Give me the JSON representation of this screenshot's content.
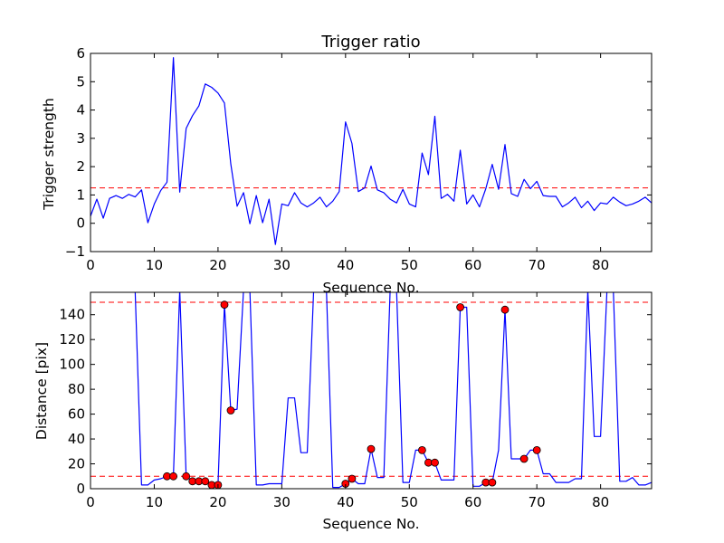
{
  "chart_data": [
    {
      "type": "line",
      "title": "Trigger ratio",
      "xlabel": "Sequence No.",
      "ylabel": "Trigger strength",
      "xlim": [
        0,
        88
      ],
      "ylim": [
        -1,
        6
      ],
      "xticks": [
        0,
        10,
        20,
        30,
        40,
        50,
        60,
        70,
        80
      ],
      "yticks": [
        -1,
        0,
        1,
        2,
        3,
        4,
        5,
        6
      ],
      "grid": false,
      "line_color": "#0000ff",
      "threshold": {
        "value": 1.25,
        "style": "dashed",
        "color": "#ff0000"
      },
      "x_start": 0,
      "values": [
        0.25,
        0.85,
        0.18,
        0.88,
        0.98,
        0.88,
        1.02,
        0.93,
        1.18,
        0.02,
        0.68,
        1.15,
        1.45,
        5.85,
        1.1,
        3.35,
        3.8,
        4.15,
        4.92,
        4.8,
        4.6,
        4.25,
        2.1,
        0.6,
        1.08,
        -0.02,
        0.98,
        0.02,
        0.85,
        -0.75,
        0.68,
        0.62,
        1.08,
        0.72,
        0.58,
        0.72,
        0.92,
        0.58,
        0.78,
        1.12,
        3.58,
        2.82,
        1.12,
        1.25,
        2.02,
        1.18,
        1.08,
        0.85,
        0.72,
        1.2,
        0.68,
        0.58,
        2.48,
        1.72,
        3.78,
        0.88,
        1.02,
        0.78,
        2.58,
        0.68,
        1.0,
        0.58,
        1.22,
        2.08,
        1.2,
        2.78,
        1.05,
        0.95,
        1.55,
        1.22,
        1.48,
        0.98,
        0.95,
        0.95,
        0.58,
        0.72,
        0.92,
        0.55,
        0.78,
        0.45,
        0.72,
        0.68,
        0.92,
        0.75,
        0.62,
        0.68,
        0.78,
        0.92,
        0.72
      ]
    },
    {
      "type": "line",
      "title": "",
      "xlabel": "Sequence No.",
      "ylabel": "Distance [pix]",
      "xlim": [
        0,
        88
      ],
      "ylim": [
        0,
        158
      ],
      "xticks": [
        0,
        10,
        20,
        30,
        40,
        50,
        60,
        70,
        80
      ],
      "yticks": [
        0,
        20,
        40,
        60,
        80,
        100,
        120,
        140
      ],
      "grid": false,
      "line_color": "#0000ff",
      "marker_color": "#ff0000",
      "thresholds": [
        {
          "value": 10,
          "style": "dashed",
          "color": "#ff0000"
        },
        {
          "value": 150,
          "style": "dashed",
          "color": "#ff0000"
        }
      ],
      "line_points": [
        [
          7,
          160
        ],
        [
          8,
          3
        ],
        [
          9,
          3
        ],
        [
          10,
          7
        ],
        [
          11,
          8
        ],
        [
          12,
          10
        ],
        [
          13,
          10
        ],
        [
          14,
          160
        ],
        [
          15,
          10
        ],
        [
          16,
          6
        ],
        [
          17,
          6
        ],
        [
          18,
          6
        ],
        [
          19,
          3
        ],
        [
          20,
          3
        ],
        [
          21,
          148
        ],
        [
          22,
          63
        ],
        [
          23,
          64
        ],
        [
          24,
          160
        ],
        [
          25,
          160
        ],
        [
          26,
          3
        ],
        [
          27,
          3
        ],
        [
          28,
          4
        ],
        [
          29,
          4
        ],
        [
          30,
          4
        ],
        [
          31,
          73
        ],
        [
          32,
          73
        ],
        [
          33,
          29
        ],
        [
          34,
          29
        ],
        [
          35,
          160
        ],
        [
          36,
          160
        ],
        [
          37,
          160
        ],
        [
          38,
          1
        ],
        [
          39,
          1
        ],
        [
          40,
          4
        ],
        [
          41,
          8
        ],
        [
          42,
          4
        ],
        [
          43,
          4
        ],
        [
          44,
          32
        ],
        [
          45,
          9
        ],
        [
          46,
          9
        ],
        [
          47,
          160
        ],
        [
          48,
          160
        ],
        [
          49,
          5
        ],
        [
          50,
          5
        ],
        [
          51,
          31
        ],
        [
          52,
          31
        ],
        [
          53,
          21
        ],
        [
          54,
          21
        ],
        [
          55,
          7
        ],
        [
          56,
          7
        ],
        [
          57,
          7
        ],
        [
          58,
          146
        ],
        [
          59,
          146
        ],
        [
          60,
          2
        ],
        [
          61,
          2
        ],
        [
          62,
          5
        ],
        [
          63,
          5
        ],
        [
          64,
          31
        ],
        [
          65,
          144
        ],
        [
          66,
          24
        ],
        [
          67,
          24
        ],
        [
          68,
          24
        ],
        [
          69,
          31
        ],
        [
          70,
          31
        ],
        [
          71,
          12
        ],
        [
          72,
          12
        ],
        [
          73,
          5
        ],
        [
          74,
          5
        ],
        [
          75,
          5
        ],
        [
          76,
          8
        ],
        [
          77,
          8
        ],
        [
          78,
          160
        ],
        [
          79,
          42
        ],
        [
          80,
          42
        ],
        [
          81,
          160
        ],
        [
          82,
          160
        ],
        [
          83,
          6
        ],
        [
          84,
          6
        ],
        [
          85,
          9
        ],
        [
          86,
          3
        ],
        [
          87,
          3
        ],
        [
          88,
          5
        ]
      ],
      "markers": [
        [
          12,
          10
        ],
        [
          13,
          10
        ],
        [
          15,
          10
        ],
        [
          16,
          6
        ],
        [
          17,
          6
        ],
        [
          18,
          6
        ],
        [
          19,
          3
        ],
        [
          20,
          3
        ],
        [
          21,
          148
        ],
        [
          22,
          63
        ],
        [
          40,
          4
        ],
        [
          41,
          8
        ],
        [
          44,
          32
        ],
        [
          52,
          31
        ],
        [
          53,
          21
        ],
        [
          54,
          21
        ],
        [
          58,
          146
        ],
        [
          62,
          5
        ],
        [
          63,
          5
        ],
        [
          65,
          144
        ],
        [
          68,
          24
        ],
        [
          70,
          31
        ]
      ]
    }
  ]
}
